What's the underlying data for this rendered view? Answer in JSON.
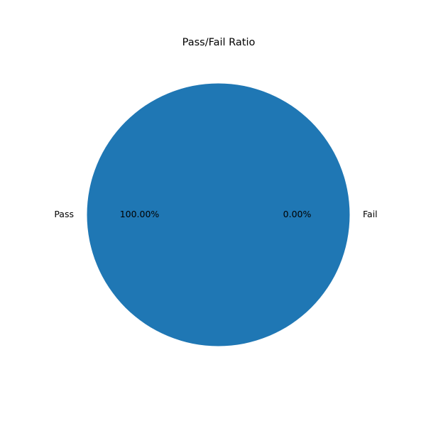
{
  "chart_data": {
    "type": "pie",
    "title": "Pass/Fail Ratio",
    "labels": [
      "Pass",
      "Fail"
    ],
    "values": [
      100,
      0
    ],
    "percent_labels": [
      "100.00%",
      "0.00%"
    ],
    "colors": [
      "#1f77b4",
      "#ff7f0e"
    ],
    "start_angle_deg": 0,
    "direction": "counterclockwise"
  }
}
